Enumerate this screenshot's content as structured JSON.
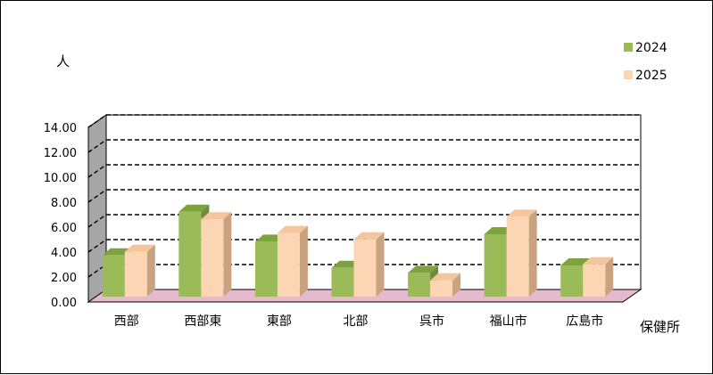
{
  "chart_data": {
    "type": "bar",
    "y_unit_label": "人",
    "x_axis_label": "保健所",
    "categories": [
      "西部",
      "西部東",
      "東部",
      "北部",
      "呉市",
      "福山市",
      "広島市"
    ],
    "series": [
      {
        "name": "2024",
        "values": [
          3.3,
          6.8,
          4.4,
          2.3,
          1.9,
          5.0,
          2.5
        ],
        "color": "#9bbb59",
        "side_color": "#6f8a3a",
        "top_color": "#7ea33e"
      },
      {
        "name": "2025",
        "values": [
          3.6,
          6.2,
          5.1,
          4.6,
          1.3,
          6.4,
          2.6
        ],
        "color": "#fcd5b4",
        "side_color": "#c9a27f",
        "top_color": "#f5c59c"
      }
    ],
    "y_ticks": [
      "0.00",
      "2.00",
      "4.00",
      "6.00",
      "8.00",
      "10.00",
      "12.00",
      "14.00"
    ],
    "ylim": [
      0,
      14
    ],
    "grid": true,
    "legend_position": "top-right"
  }
}
